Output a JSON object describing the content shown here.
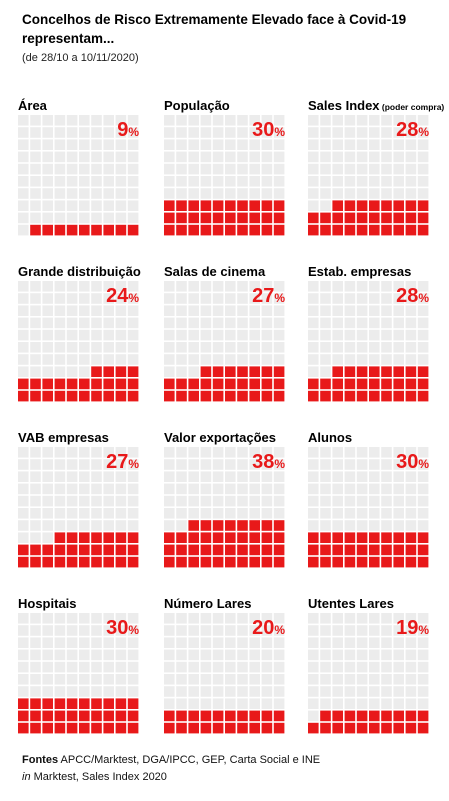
{
  "header": {
    "title": "Concelhos de Risco Extremamente Elevado face à Covid-19 representam...",
    "subtitle": "(de 28/10 a 10/11/2020)"
  },
  "colors": {
    "filled": "#e8191a",
    "empty": "#ececec",
    "accent_text": "#e8191a"
  },
  "chart_data": {
    "type": "waffle",
    "grid": [
      10,
      10
    ],
    "unit": "%",
    "panels": [
      {
        "label": "Área",
        "label_suffix": "",
        "value": 9
      },
      {
        "label": "População",
        "label_suffix": "",
        "value": 30
      },
      {
        "label": "Sales Index",
        "label_suffix": "(poder compra)",
        "value": 28
      },
      {
        "label": "Grande distribuição",
        "label_suffix": "",
        "value": 24
      },
      {
        "label": "Salas de cinema",
        "label_suffix": "",
        "value": 27
      },
      {
        "label": "Estab. empresas",
        "label_suffix": "",
        "value": 28
      },
      {
        "label": "VAB empresas",
        "label_suffix": "",
        "value": 27
      },
      {
        "label": "Valor exportações",
        "label_suffix": "",
        "value": 38
      },
      {
        "label": "Alunos",
        "label_suffix": "",
        "value": 30
      },
      {
        "label": "Hospitais",
        "label_suffix": "",
        "value": 30
      },
      {
        "label": "Número Lares",
        "label_suffix": "",
        "value": 20
      },
      {
        "label": "Utentes Lares",
        "label_suffix": "",
        "value": 19
      }
    ]
  },
  "footer": {
    "sources_label": "Fontes",
    "sources_text": "APCC/Marktest, DGA/IPCC, GEP, Carta Social e INE",
    "in_label": "in",
    "in_text": "Marktest, Sales Index 2020"
  }
}
